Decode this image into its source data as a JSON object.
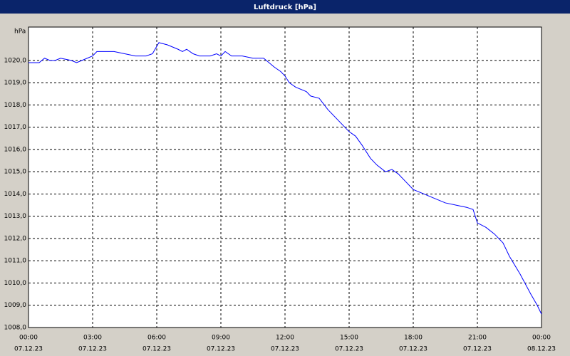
{
  "chart_data": {
    "type": "line",
    "title": "Luftdruck [hPa]",
    "y_label": "hPa",
    "x": [
      0,
      0.5,
      0.75,
      1,
      1.25,
      1.5,
      2,
      2.25,
      2.5,
      3,
      3.2,
      4,
      4.5,
      5,
      5.5,
      5.8,
      6.1,
      6.5,
      7,
      7.2,
      7.4,
      7.7,
      8,
      8.5,
      8.8,
      9,
      9.2,
      9.5,
      10,
      10.5,
      11,
      11.5,
      11.8,
      12,
      12.2,
      12.5,
      13,
      13.2,
      13.6,
      14,
      14.5,
      14.8,
      15,
      15.3,
      15.6,
      16,
      16.3,
      16.7,
      17,
      17.3,
      17.6,
      18,
      18.5,
      19,
      19.5,
      20,
      20.5,
      20.8,
      21,
      21.4,
      21.8,
      22.2,
      22.5,
      23,
      23.5,
      23.8,
      24
    ],
    "series": [
      {
        "name": "Luftdruck",
        "color": "#0000ff",
        "values": [
          1019.9,
          1019.9,
          1020.1,
          1020.0,
          1020.0,
          1020.1,
          1020.0,
          1019.9,
          1020.0,
          1020.2,
          1020.4,
          1020.4,
          1020.3,
          1020.2,
          1020.2,
          1020.3,
          1020.8,
          1020.7,
          1020.5,
          1020.4,
          1020.5,
          1020.3,
          1020.2,
          1020.2,
          1020.3,
          1020.2,
          1020.4,
          1020.2,
          1020.2,
          1020.1,
          1020.1,
          1019.7,
          1019.5,
          1019.3,
          1019.0,
          1018.8,
          1018.6,
          1018.4,
          1018.3,
          1017.8,
          1017.3,
          1017.0,
          1016.8,
          1016.6,
          1016.2,
          1015.6,
          1015.3,
          1015.0,
          1015.1,
          1014.9,
          1014.6,
          1014.2,
          1014.0,
          1013.8,
          1013.6,
          1013.5,
          1013.4,
          1013.3,
          1012.7,
          1012.5,
          1012.2,
          1011.8,
          1011.2,
          1010.4,
          1009.5,
          1009.0,
          1008.6
        ]
      }
    ],
    "xlim": [
      0,
      24
    ],
    "xticks": [
      {
        "value": 0,
        "label": "00:00"
      },
      {
        "value": 3,
        "label": "03:00"
      },
      {
        "value": 6,
        "label": "06:00"
      },
      {
        "value": 9,
        "label": "09:00"
      },
      {
        "value": 12,
        "label": "12:00"
      },
      {
        "value": 15,
        "label": "15:00"
      },
      {
        "value": 18,
        "label": "18:00"
      },
      {
        "value": 21,
        "label": "21:00"
      },
      {
        "value": 24,
        "label": "00:00"
      }
    ],
    "xtick_dates": [
      "07.12.23",
      "07.12.23",
      "07.12.23",
      "07.12.23",
      "07.12.23",
      "07.12.23",
      "07.12.23",
      "07.12.23",
      "08.12.23"
    ],
    "ylim": [
      1008,
      1021.5
    ],
    "yticks": [
      {
        "value": 1008,
        "label": "1008,0"
      },
      {
        "value": 1009,
        "label": "1009,0"
      },
      {
        "value": 1010,
        "label": "1010,0"
      },
      {
        "value": 1011,
        "label": "1011,0"
      },
      {
        "value": 1012,
        "label": "1012,0"
      },
      {
        "value": 1013,
        "label": "1013,0"
      },
      {
        "value": 1014,
        "label": "1014,0"
      },
      {
        "value": 1015,
        "label": "1015,0"
      },
      {
        "value": 1016,
        "label": "1016,0"
      },
      {
        "value": 1017,
        "label": "1017,0"
      },
      {
        "value": 1018,
        "label": "1018,0"
      },
      {
        "value": 1019,
        "label": "1019,0"
      },
      {
        "value": 1020,
        "label": "1020,0"
      }
    ],
    "grid": true
  }
}
